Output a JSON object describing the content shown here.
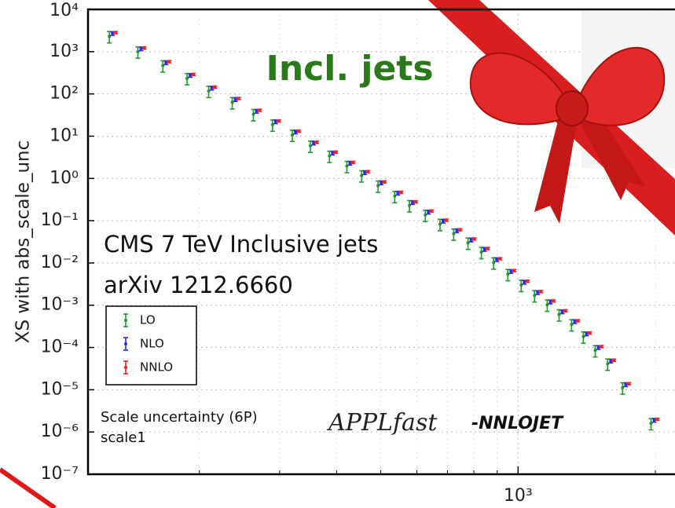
{
  "chart_data": {
    "type": "errorbar",
    "title": "Incl. jets",
    "y_label": "XS with abs_scale_unc",
    "annotations": [
      "CMS 7 TeV Inclusive jets",
      "arXiv 1212.6660",
      "Scale uncertainty (6P)",
      "scale1"
    ],
    "brand": {
      "script": "APPLfast",
      "suffix": "-NNLOJET"
    },
    "log_x": true,
    "log_y": true,
    "grid": true,
    "legend": "lower left",
    "xlim": [
      114,
      2200
    ],
    "xticks": [
      {
        "value": 1000,
        "label": "10³"
      }
    ],
    "xminor_ticks": [
      200,
      300,
      400,
      500,
      600,
      700,
      800,
      900,
      2000
    ],
    "ylim": [
      1e-07,
      10000.0
    ],
    "yticks": [
      {
        "value": 1e-07,
        "label": "10⁻⁷"
      },
      {
        "value": 1e-06,
        "label": "10⁻⁶"
      },
      {
        "value": 1e-05,
        "label": "10⁻⁵"
      },
      {
        "value": 0.0001,
        "label": "10⁻⁴"
      },
      {
        "value": 0.001,
        "label": "10⁻³"
      },
      {
        "value": 0.01,
        "label": "10⁻²"
      },
      {
        "value": 0.1,
        "label": "10⁻¹"
      },
      {
        "value": 1,
        "label": "10⁰"
      },
      {
        "value": 10,
        "label": "10¹"
      },
      {
        "value": 100,
        "label": "10²"
      },
      {
        "value": 1000,
        "label": "10³"
      },
      {
        "value": 10000,
        "label": "10⁴"
      }
    ],
    "x": [
      129,
      149,
      169,
      191,
      213,
      240,
      267,
      294,
      325,
      356,
      392,
      428,
      461,
      501,
      545,
      587,
      636,
      685,
      734,
      789,
      844,
      898,
      965,
      1032,
      1104,
      1177,
      1250,
      1331,
      1413,
      1500,
      1597,
      1722,
      1988
    ],
    "series": [
      {
        "name": "LO",
        "color": "#1f9a2a",
        "error_fraction": 0.3,
        "values": [
          2300,
          1000,
          470,
          234,
          117,
          63,
          33,
          18.7,
          10.7,
          5.9,
          3.4,
          1.96,
          1.17,
          0.67,
          0.38,
          0.23,
          0.136,
          0.083,
          0.049,
          0.03,
          0.018,
          0.0102,
          0.0054,
          0.003,
          0.0017,
          0.00102,
          0.0006,
          0.00035,
          0.00018,
          8.5e-05,
          4.1e-05,
          1.12e-05,
          1.6e-06
        ]
      },
      {
        "name": "NLO",
        "color": "#2a2ae0",
        "error_fraction": 0.1,
        "values": [
          2700,
          1175,
          550,
          275,
          138,
          74,
          39,
          22,
          12.6,
          6.9,
          4.0,
          2.3,
          1.38,
          0.79,
          0.45,
          0.27,
          0.16,
          0.098,
          0.058,
          0.035,
          0.021,
          0.012,
          0.0063,
          0.0035,
          0.002,
          0.0012,
          0.0007,
          0.00041,
          0.00021,
          0.0001,
          4.8e-05,
          1.32e-05,
          1.9e-06
        ]
      },
      {
        "name": "NNLO",
        "color": "#e82424",
        "error_fraction": 0.06,
        "values": [
          2830,
          1230,
          580,
          290,
          145,
          78,
          41,
          23,
          13.2,
          7.2,
          4.2,
          2.4,
          1.45,
          0.83,
          0.47,
          0.28,
          0.17,
          0.103,
          0.061,
          0.037,
          0.022,
          0.0126,
          0.0066,
          0.0037,
          0.0021,
          0.00126,
          0.00074,
          0.00043,
          0.00022,
          0.000105,
          5e-05,
          1.39e-05,
          2e-06
        ]
      }
    ]
  }
}
